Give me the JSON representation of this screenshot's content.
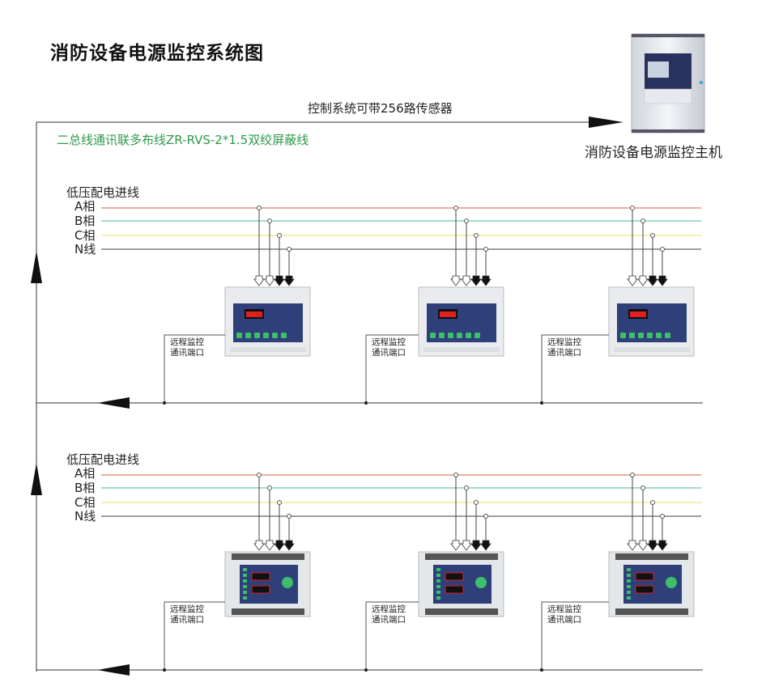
{
  "title": "消防设备电源监控系统图",
  "host": {
    "label": "消防设备电源监控主机"
  },
  "bus": {
    "capacity_label": "控制系统可带256路传感器",
    "cable_label": "二总线通讯联多布线ZR-RVS-2*1.5双绞屏蔽线"
  },
  "sections": [
    {
      "heading": "低压配电进线",
      "phases": [
        "A相",
        "B相",
        "C相",
        "N线"
      ],
      "module_type": "rail-mount-module",
      "port_label": [
        "远程监控",
        "通讯端口"
      ]
    },
    {
      "heading": "低压配电进线",
      "phases": [
        "A相",
        "B相",
        "C相",
        "N线"
      ],
      "module_type": "panel-module",
      "port_label": [
        "远程监控",
        "通讯端口"
      ]
    }
  ],
  "colors": {
    "phase_a": "#e07a6a",
    "phase_b": "#6cc59a",
    "phase_c": "#f2e27a",
    "neutral": "#666666",
    "cable_text": "#2e9a4a",
    "module_panel": "#2f3f7a",
    "display": "#e02020"
  }
}
